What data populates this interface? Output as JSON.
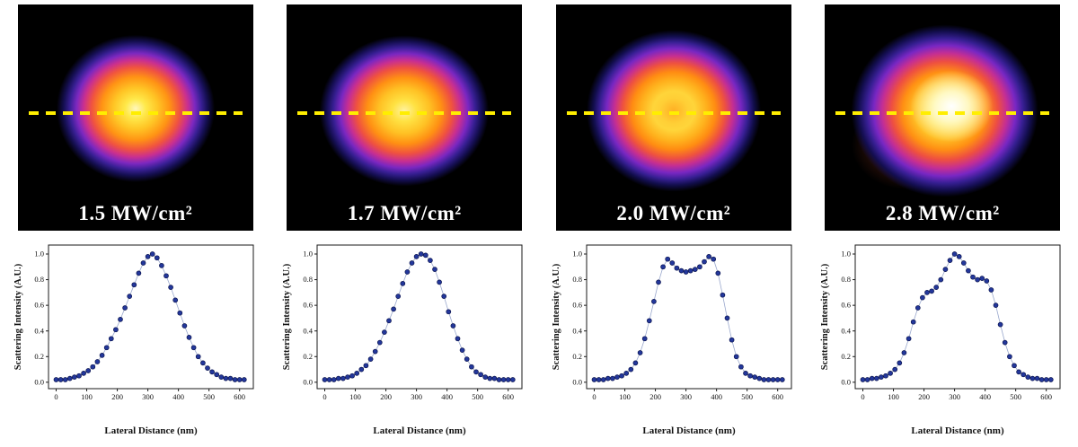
{
  "figure": {
    "panels": [
      {
        "power_label": "1.5 MW/cm²"
      },
      {
        "power_label": "1.7 MW/cm²"
      },
      {
        "power_label": "2.0 MW/cm²"
      },
      {
        "power_label": "2.8 MW/cm²"
      }
    ]
  },
  "colors": {
    "scan_line": "#ffee00",
    "image_background": "#000000",
    "label_text": "#ffffff",
    "point_fill": "#23379b",
    "point_edge": "#0d1650",
    "connector_line": "#9aa8cd"
  },
  "chart_data": [
    {
      "type": "scatter",
      "title": "1.5 MW/cm²",
      "xlabel": "Lateral Distance (nm)",
      "ylabel": "Scattering Intensity (A.U.)",
      "xlim": [
        -25,
        645
      ],
      "ylim": [
        -0.05,
        1.07
      ],
      "x_ticks": [
        0,
        100,
        200,
        300,
        400,
        500,
        600
      ],
      "y_ticks": [
        0,
        0.2,
        0.4,
        0.6,
        0.8,
        1
      ],
      "y_tick_labels": [
        "0.0",
        "0.2",
        "0.4",
        "0.6",
        "0.8",
        "1.0"
      ],
      "x": [
        0,
        15,
        30,
        45,
        60,
        75,
        90,
        105,
        120,
        135,
        150,
        165,
        180,
        195,
        210,
        225,
        240,
        255,
        270,
        285,
        300,
        315,
        330,
        345,
        360,
        375,
        390,
        405,
        420,
        435,
        450,
        465,
        480,
        495,
        510,
        525,
        540,
        555,
        570,
        585,
        600,
        615
      ],
      "y": [
        0.02,
        0.02,
        0.02,
        0.03,
        0.04,
        0.05,
        0.07,
        0.09,
        0.12,
        0.16,
        0.21,
        0.27,
        0.34,
        0.41,
        0.49,
        0.58,
        0.67,
        0.76,
        0.85,
        0.93,
        0.98,
        1.0,
        0.97,
        0.91,
        0.83,
        0.74,
        0.64,
        0.54,
        0.44,
        0.35,
        0.27,
        0.2,
        0.15,
        0.11,
        0.08,
        0.06,
        0.04,
        0.03,
        0.03,
        0.02,
        0.02,
        0.02
      ]
    },
    {
      "type": "scatter",
      "title": "1.7 MW/cm²",
      "xlabel": "Lateral Distance (nm)",
      "ylabel": "Scattering Intensity (A.U.)",
      "xlim": [
        -25,
        645
      ],
      "ylim": [
        -0.05,
        1.07
      ],
      "x_ticks": [
        0,
        100,
        200,
        300,
        400,
        500,
        600
      ],
      "y_ticks": [
        0,
        0.2,
        0.4,
        0.6,
        0.8,
        1
      ],
      "y_tick_labels": [
        "0.0",
        "0.2",
        "0.4",
        "0.6",
        "0.8",
        "1.0"
      ],
      "x": [
        0,
        15,
        30,
        45,
        60,
        75,
        90,
        105,
        120,
        135,
        150,
        165,
        180,
        195,
        210,
        225,
        240,
        255,
        270,
        285,
        300,
        315,
        330,
        345,
        360,
        375,
        390,
        405,
        420,
        435,
        450,
        465,
        480,
        495,
        510,
        525,
        540,
        555,
        570,
        585,
        600,
        615
      ],
      "y": [
        0.02,
        0.02,
        0.02,
        0.03,
        0.03,
        0.04,
        0.05,
        0.07,
        0.1,
        0.13,
        0.18,
        0.24,
        0.31,
        0.39,
        0.48,
        0.57,
        0.67,
        0.77,
        0.86,
        0.93,
        0.98,
        1.0,
        0.99,
        0.95,
        0.88,
        0.78,
        0.67,
        0.55,
        0.44,
        0.34,
        0.25,
        0.18,
        0.12,
        0.08,
        0.06,
        0.04,
        0.03,
        0.03,
        0.02,
        0.02,
        0.02,
        0.02
      ]
    },
    {
      "type": "scatter",
      "title": "2.0 MW/cm²",
      "xlabel": "Lateral Distance (nm)",
      "ylabel": "Scattering Intensity (A.U.)",
      "xlim": [
        -25,
        645
      ],
      "ylim": [
        -0.05,
        1.07
      ],
      "x_ticks": [
        0,
        100,
        200,
        300,
        400,
        500,
        600
      ],
      "y_ticks": [
        0,
        0.2,
        0.4,
        0.6,
        0.8,
        1
      ],
      "y_tick_labels": [
        "0.0",
        "0.2",
        "0.4",
        "0.6",
        "0.8",
        "1.0"
      ],
      "x": [
        0,
        15,
        30,
        45,
        60,
        75,
        90,
        105,
        120,
        135,
        150,
        165,
        180,
        195,
        210,
        225,
        240,
        255,
        270,
        285,
        300,
        315,
        330,
        345,
        360,
        375,
        390,
        405,
        420,
        435,
        450,
        465,
        480,
        495,
        510,
        525,
        540,
        555,
        570,
        585,
        600,
        615
      ],
      "y": [
        0.02,
        0.02,
        0.02,
        0.03,
        0.03,
        0.04,
        0.05,
        0.07,
        0.1,
        0.15,
        0.23,
        0.34,
        0.48,
        0.63,
        0.78,
        0.9,
        0.96,
        0.93,
        0.89,
        0.87,
        0.86,
        0.87,
        0.88,
        0.9,
        0.94,
        0.98,
        0.96,
        0.85,
        0.68,
        0.5,
        0.33,
        0.2,
        0.12,
        0.07,
        0.05,
        0.04,
        0.03,
        0.02,
        0.02,
        0.02,
        0.02,
        0.02
      ]
    },
    {
      "type": "scatter",
      "title": "2.8 MW/cm²",
      "xlabel": "Lateral Distance (nm)",
      "ylabel": "Scattering Intensity (A.U.)",
      "xlim": [
        -25,
        645
      ],
      "ylim": [
        -0.05,
        1.07
      ],
      "x_ticks": [
        0,
        100,
        200,
        300,
        400,
        500,
        600
      ],
      "y_ticks": [
        0,
        0.2,
        0.4,
        0.6,
        0.8,
        1
      ],
      "y_tick_labels": [
        "0.0",
        "0.2",
        "0.4",
        "0.6",
        "0.8",
        "1.0"
      ],
      "x": [
        0,
        15,
        30,
        45,
        60,
        75,
        90,
        105,
        120,
        135,
        150,
        165,
        180,
        195,
        210,
        225,
        240,
        255,
        270,
        285,
        300,
        315,
        330,
        345,
        360,
        375,
        390,
        405,
        420,
        435,
        450,
        465,
        480,
        495,
        510,
        525,
        540,
        555,
        570,
        585,
        600,
        615
      ],
      "y": [
        0.02,
        0.02,
        0.03,
        0.03,
        0.04,
        0.05,
        0.07,
        0.1,
        0.15,
        0.23,
        0.34,
        0.47,
        0.58,
        0.66,
        0.7,
        0.71,
        0.74,
        0.8,
        0.88,
        0.95,
        1.0,
        0.98,
        0.93,
        0.87,
        0.82,
        0.8,
        0.81,
        0.79,
        0.72,
        0.6,
        0.45,
        0.31,
        0.2,
        0.13,
        0.08,
        0.06,
        0.04,
        0.03,
        0.03,
        0.02,
        0.02,
        0.02
      ]
    }
  ]
}
